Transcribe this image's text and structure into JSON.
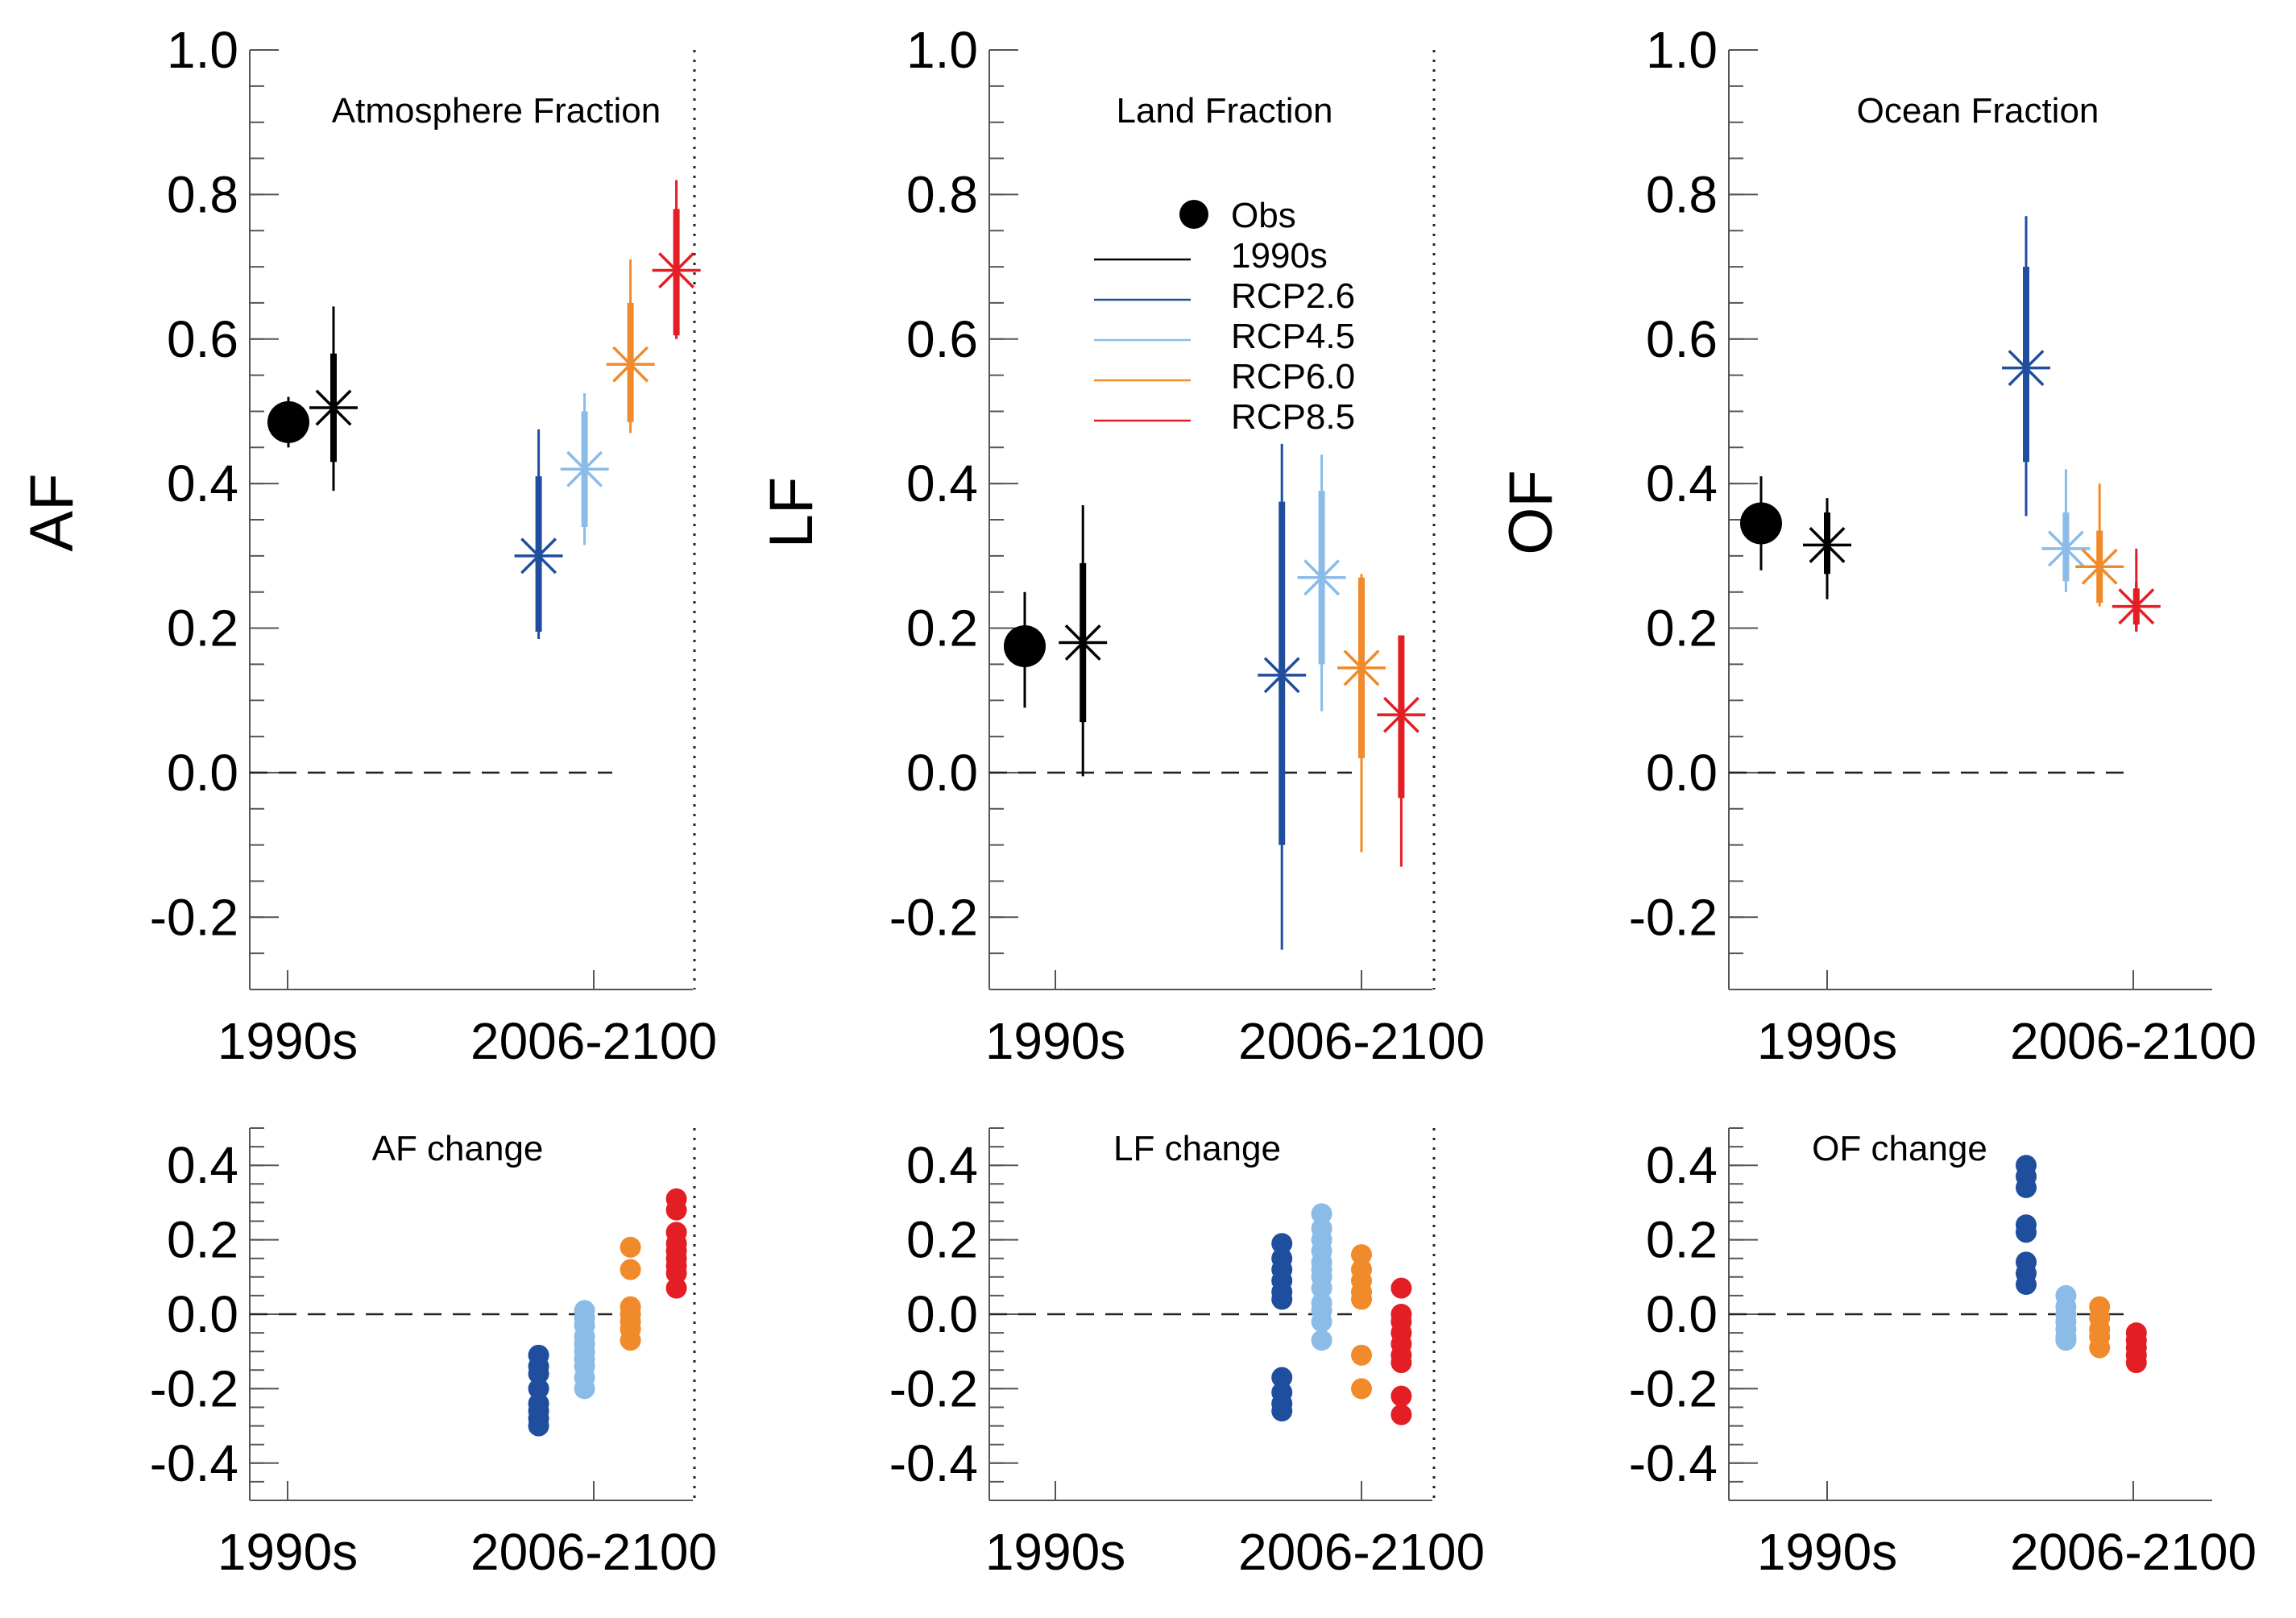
{
  "colors": {
    "obs": "#000000",
    "1990s": "#000000",
    "RCP2.6": "#1f4e9e",
    "RCP4.5": "#8bbce8",
    "RCP6.0": "#f08a2a",
    "RCP8.5": "#e31e24"
  },
  "legend": {
    "items": [
      {
        "label": "Obs",
        "key": "obs",
        "kind": "dot"
      },
      {
        "label": "1990s",
        "key": "1990s",
        "kind": "line"
      },
      {
        "label": "RCP2.6",
        "key": "RCP2.6",
        "kind": "line"
      },
      {
        "label": "RCP4.5",
        "key": "RCP4.5",
        "kind": "line"
      },
      {
        "label": "RCP6.0",
        "key": "RCP6.0",
        "kind": "line"
      },
      {
        "label": "RCP8.5",
        "key": "RCP8.5",
        "kind": "line"
      }
    ]
  },
  "chart_data": [
    {
      "type": "scatter",
      "title": "Atmosphere Fraction",
      "ylabel": "AF",
      "categories": [
        "1990s",
        "2006-2100"
      ],
      "ylim": [
        -0.3,
        1.0
      ],
      "yticks": [
        "-0.2",
        "0.0",
        "0.2",
        "0.4",
        "0.6",
        "0.8",
        "1.0"
      ],
      "zero_line": "dashed",
      "obs": {
        "y": 0.485,
        "low": 0.45,
        "high": 0.52
      },
      "series": [
        {
          "key": "1990s",
          "x": 1.15,
          "y": 0.505,
          "box": [
            0.43,
            0.58
          ],
          "whisker": [
            0.39,
            0.645
          ]
        },
        {
          "key": "RCP2.6",
          "x": 1.82,
          "y": 0.3,
          "box": [
            0.195,
            0.41
          ],
          "whisker": [
            0.185,
            0.475
          ]
        },
        {
          "key": "RCP4.5",
          "x": 1.97,
          "y": 0.42,
          "box": [
            0.34,
            0.5
          ],
          "whisker": [
            0.315,
            0.525
          ]
        },
        {
          "key": "RCP6.0",
          "x": 2.12,
          "y": 0.565,
          "box": [
            0.485,
            0.65
          ],
          "whisker": [
            0.47,
            0.71
          ]
        },
        {
          "key": "RCP8.5",
          "x": 2.27,
          "y": 0.695,
          "box": [
            0.605,
            0.78
          ],
          "whisker": [
            0.6,
            0.82
          ]
        }
      ]
    },
    {
      "type": "scatter",
      "title": "Land Fraction",
      "ylabel": "LF",
      "categories": [
        "1990s",
        "2006-2100"
      ],
      "ylim": [
        -0.3,
        1.0
      ],
      "yticks": [
        "-0.2",
        "0.0",
        "0.2",
        "0.4",
        "0.6",
        "0.8",
        "1.0"
      ],
      "zero_line": "dashed",
      "obs": {
        "y": 0.175,
        "low": 0.09,
        "high": 0.25
      },
      "series": [
        {
          "key": "1990s",
          "x": 1.09,
          "y": 0.18,
          "box": [
            0.07,
            0.29
          ],
          "whisker": [
            -0.005,
            0.37
          ]
        },
        {
          "key": "RCP2.6",
          "x": 1.74,
          "y": 0.135,
          "box": [
            -0.1,
            0.375
          ],
          "whisker": [
            -0.245,
            0.455
          ]
        },
        {
          "key": "RCP4.5",
          "x": 1.87,
          "y": 0.27,
          "box": [
            0.15,
            0.39
          ],
          "whisker": [
            0.085,
            0.44
          ]
        },
        {
          "key": "RCP6.0",
          "x": 2.0,
          "y": 0.145,
          "box": [
            0.02,
            0.27
          ],
          "whisker": [
            -0.11,
            0.275
          ]
        },
        {
          "key": "RCP8.5",
          "x": 2.13,
          "y": 0.08,
          "box": [
            -0.035,
            0.19
          ],
          "whisker": [
            -0.13,
            0.19
          ]
        }
      ]
    },
    {
      "type": "scatter",
      "title": "Ocean Fraction",
      "ylabel": "OF",
      "categories": [
        "1990s",
        "2006-2100"
      ],
      "ylim": [
        -0.3,
        1.0
      ],
      "yticks": [
        "-0.2",
        "0.0",
        "0.2",
        "0.4",
        "0.6",
        "0.8",
        "1.0"
      ],
      "zero_line": "dashed",
      "obs": {
        "y": 0.345,
        "low": 0.28,
        "high": 0.41
      },
      "series": [
        {
          "key": "1990s",
          "x": 1.0,
          "y": 0.315,
          "box": [
            0.275,
            0.36
          ],
          "whisker": [
            0.24,
            0.38
          ]
        },
        {
          "key": "RCP2.6",
          "x": 1.65,
          "y": 0.56,
          "box": [
            0.43,
            0.7
          ],
          "whisker": [
            0.355,
            0.77
          ]
        },
        {
          "key": "RCP4.5",
          "x": 1.78,
          "y": 0.31,
          "box": [
            0.265,
            0.36
          ],
          "whisker": [
            0.25,
            0.42
          ]
        },
        {
          "key": "RCP6.0",
          "x": 1.89,
          "y": 0.285,
          "box": [
            0.235,
            0.335
          ],
          "whisker": [
            0.23,
            0.4
          ]
        },
        {
          "key": "RCP8.5",
          "x": 2.01,
          "y": 0.23,
          "box": [
            0.205,
            0.255
          ],
          "whisker": [
            0.195,
            0.31
          ]
        }
      ]
    },
    {
      "type": "scatter",
      "title": "AF change",
      "categories": [
        "1990s",
        "2006-2100"
      ],
      "ylim": [
        -0.5,
        0.5
      ],
      "yticks": [
        "-0.4",
        "-0.2",
        "0.0",
        "0.2",
        "0.4"
      ],
      "zero_line": "dashed",
      "series": [
        {
          "key": "RCP2.6",
          "x": 1.82,
          "values": [
            -0.11,
            -0.14,
            -0.16,
            -0.2,
            -0.24,
            -0.26,
            -0.28,
            -0.3
          ]
        },
        {
          "key": "RCP4.5",
          "x": 1.97,
          "values": [
            0.01,
            -0.01,
            -0.03,
            -0.06,
            -0.08,
            -0.1,
            -0.12,
            -0.14,
            -0.17,
            -0.2
          ]
        },
        {
          "key": "RCP6.0",
          "x": 2.12,
          "values": [
            0.18,
            0.12,
            0.02,
            0.0,
            -0.02,
            -0.04,
            -0.07
          ]
        },
        {
          "key": "RCP8.5",
          "x": 2.27,
          "values": [
            0.31,
            0.28,
            0.22,
            0.19,
            0.17,
            0.15,
            0.13,
            0.11,
            0.07
          ]
        }
      ]
    },
    {
      "type": "scatter",
      "title": "LF change",
      "categories": [
        "1990s",
        "2006-2100"
      ],
      "ylim": [
        -0.5,
        0.5
      ],
      "yticks": [
        "-0.4",
        "-0.2",
        "0.0",
        "0.2",
        "0.4"
      ],
      "zero_line": "dashed",
      "series": [
        {
          "key": "RCP2.6",
          "x": 1.74,
          "values": [
            0.19,
            0.15,
            0.12,
            0.09,
            0.06,
            0.04,
            -0.17,
            -0.21,
            -0.24,
            -0.26
          ]
        },
        {
          "key": "RCP4.5",
          "x": 1.87,
          "values": [
            0.27,
            0.23,
            0.2,
            0.17,
            0.14,
            0.12,
            0.1,
            0.07,
            0.03,
            0.01,
            -0.02,
            -0.07
          ]
        },
        {
          "key": "RCP6.0",
          "x": 2.0,
          "values": [
            0.16,
            0.12,
            0.09,
            0.06,
            0.04,
            -0.11,
            -0.2
          ]
        },
        {
          "key": "RCP8.5",
          "x": 2.13,
          "values": [
            0.07,
            0.0,
            -0.02,
            -0.05,
            -0.08,
            -0.11,
            -0.13,
            -0.22,
            -0.27
          ]
        }
      ]
    },
    {
      "type": "scatter",
      "title": "OF change",
      "categories": [
        "1990s",
        "2006-2100"
      ],
      "ylim": [
        -0.5,
        0.5
      ],
      "yticks": [
        "-0.4",
        "-0.2",
        "0.0",
        "0.2",
        "0.4"
      ],
      "zero_line": "dashed",
      "series": [
        {
          "key": "RCP2.6",
          "x": 1.65,
          "values": [
            0.4,
            0.37,
            0.34,
            0.24,
            0.22,
            0.14,
            0.11,
            0.08
          ]
        },
        {
          "key": "RCP4.5",
          "x": 1.78,
          "values": [
            0.05,
            0.02,
            0.0,
            -0.02,
            -0.04,
            -0.06,
            -0.07
          ]
        },
        {
          "key": "RCP6.0",
          "x": 1.89,
          "values": [
            0.02,
            -0.01,
            -0.04,
            -0.06,
            -0.09
          ]
        },
        {
          "key": "RCP8.5",
          "x": 2.01,
          "values": [
            -0.05,
            -0.07,
            -0.09,
            -0.11,
            -0.13
          ]
        }
      ]
    }
  ]
}
